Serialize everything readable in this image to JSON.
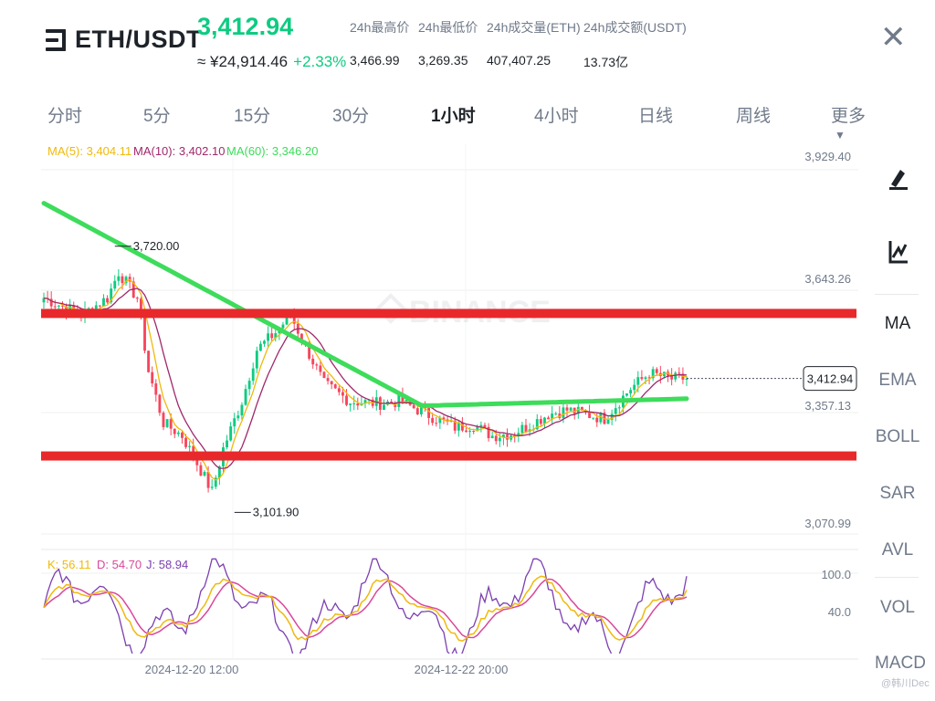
{
  "header": {
    "pair": "ETH/USDT",
    "price": "3,412.94",
    "cny_price": "≈ ¥24,914.46",
    "change_pct": "+2.33%",
    "stats": [
      {
        "label": "24h最高价",
        "value": "3,466.99"
      },
      {
        "label": "24h最低价",
        "value": "3,269.35"
      },
      {
        "label": "24h成交量(ETH)",
        "value": "407,407.25"
      },
      {
        "label": "24h成交额(USDT)",
        "value": "13.73亿"
      }
    ]
  },
  "tabs": [
    {
      "label": "分时",
      "active": false
    },
    {
      "label": "5分",
      "active": false
    },
    {
      "label": "15分",
      "active": false
    },
    {
      "label": "30分",
      "active": false
    },
    {
      "label": "1小时",
      "active": true
    },
    {
      "label": "4小时",
      "active": false
    },
    {
      "label": "日线",
      "active": false
    },
    {
      "label": "周线",
      "active": false
    },
    {
      "label": "更多",
      "active": false
    }
  ],
  "sidebar": {
    "tools": [
      "draw-pen-icon",
      "draw-indicator-icon"
    ],
    "indicators": [
      "MA",
      "EMA",
      "BOLL",
      "SAR",
      "AVL",
      "VOL",
      "MACD"
    ],
    "active_indicator": "MA"
  },
  "chart_data": {
    "type": "candlestick",
    "ma_legend": [
      {
        "label": "MA(5): 3,404.11",
        "color": "#f0b90b"
      },
      {
        "label": "MA(10): 3,402.10",
        "color": "#a0286b"
      },
      {
        "label": "MA(60): 3,346.20",
        "color": "#3ddc5b"
      }
    ],
    "price_axis": [
      "3,929.40",
      "3,643.26",
      "3,070.99"
    ],
    "price_range": [
      3070.99,
      3929.4
    ],
    "current_price_label": "3,412.94",
    "current_price": 3412.94,
    "hidden_tick": "3,357.13",
    "high_marker": {
      "label": "3,720.00",
      "value": 3720.0
    },
    "low_marker": {
      "label": "3,101.90",
      "value": 3101.9
    },
    "horizontal_lines": [
      3564.0,
      3233.0
    ],
    "horizontal_line_color": "#e8292c",
    "watermark": "BINANCE",
    "up_color": "#0ecb81",
    "down_color": "#f6465d",
    "kdj_legend": [
      {
        "label": "K: 56.11",
        "color": "#f0b90b"
      },
      {
        "label": "D: 54.70",
        "color": "#d9479b"
      },
      {
        "label": "J: 58.94",
        "color": "#7b3fb0"
      }
    ],
    "kdj_axis": [
      "100.0",
      "40.0"
    ],
    "time_labels": [
      "2024-12-20 12:00",
      "2024-12-22 20:00"
    ]
  },
  "watermark_user": "@韩川Dec"
}
